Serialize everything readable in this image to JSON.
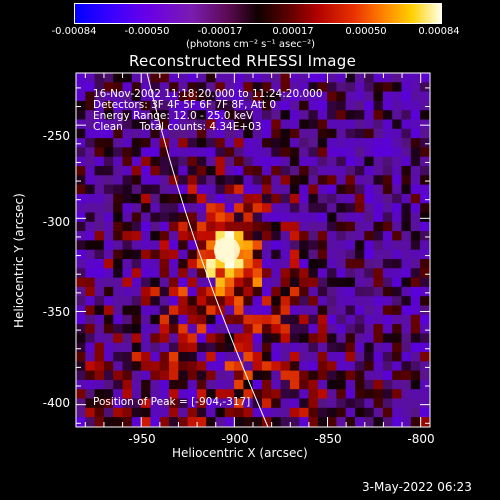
{
  "colorbar": {
    "ticks": [
      "-0.00084",
      "-0.00050",
      "-0.00017",
      "0.00017",
      "0.00050",
      "0.00084"
    ],
    "units": "(photons cm⁻² s⁻¹ asec⁻²)"
  },
  "title": "Reconstructed RHESSI Image",
  "annotations": {
    "time_range": "16-Nov-2002 11:18:20.000 to 11:24:20.000",
    "detectors": "Detectors: 3F 4F 5F 6F 7F 8F, Att 0",
    "energy_range": "Energy Range: 12.0 - 25.0 keV",
    "method_counts": "Clean     Total counts: 4.34E+03",
    "peak_position": "Position of Peak = [-904,-317]"
  },
  "x_axis": {
    "label": "Heliocentric X (arcsec)",
    "ticks": [
      "-950",
      "-900",
      "-850",
      "-800"
    ]
  },
  "y_axis": {
    "label": "Heliocentric Y (arcsec)",
    "ticks": [
      "-250",
      "-300",
      "-350",
      "-400"
    ]
  },
  "footer_date": "3-May-2022 06:23",
  "image": {
    "peak_x_arcsec": -904,
    "peak_y_arcsec": -317,
    "x_range": [
      -985,
      -795
    ],
    "y_range": [
      -412,
      -222
    ]
  }
}
